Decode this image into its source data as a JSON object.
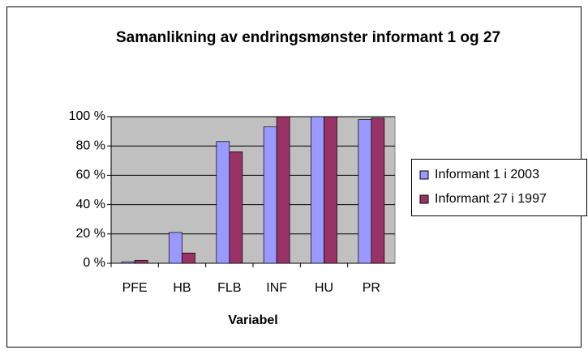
{
  "chart_data": {
    "type": "bar",
    "title": "Samanlikning av endringsmønster informant 1 og 27",
    "x_label": "Variabel",
    "categories": [
      "PFE",
      "HB",
      "FLB",
      "INF",
      "HU",
      "PR"
    ],
    "series": [
      {
        "name": "Informant 1 i 2003",
        "color": "#9999ff",
        "values": [
          1,
          21,
          83,
          93,
          100,
          98
        ]
      },
      {
        "name": "Informant 27 i 1997",
        "color": "#993366",
        "values": [
          2,
          7,
          76,
          100,
          100,
          99
        ]
      }
    ],
    "ylim": [
      0,
      100
    ],
    "yticks": [
      {
        "value": 0,
        "label": "0 %"
      },
      {
        "value": 20,
        "label": "20 %"
      },
      {
        "value": 40,
        "label": "40 %"
      },
      {
        "value": 60,
        "label": "60 %"
      },
      {
        "value": 80,
        "label": "80 %"
      },
      {
        "value": 100,
        "label": "100 %"
      }
    ],
    "grid": true,
    "legend": "right"
  }
}
